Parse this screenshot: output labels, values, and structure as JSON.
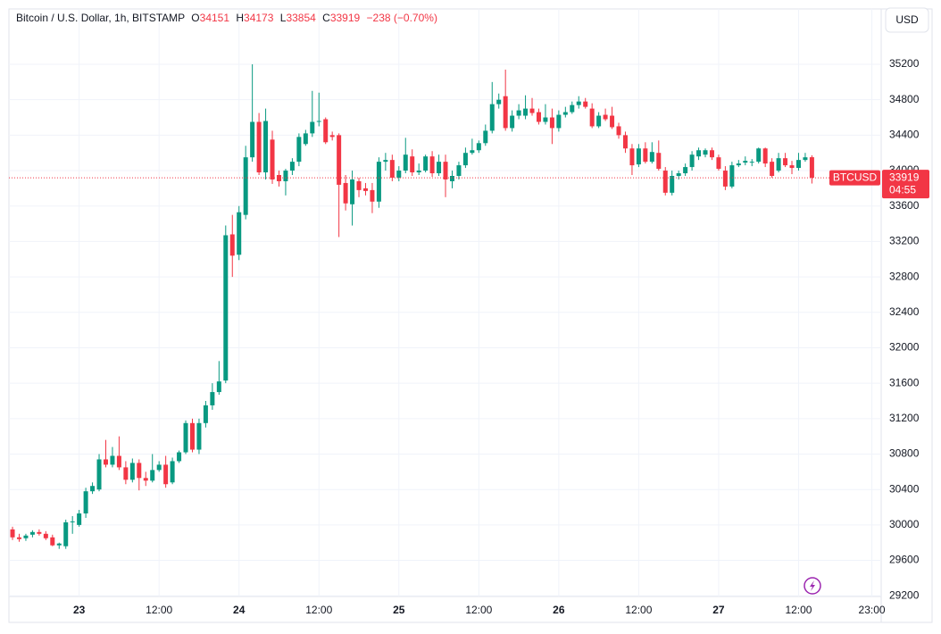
{
  "chart_data": {
    "type": "candlestick",
    "title": "Bitcoin / U.S. Dollar, 1h, BITSTAMP",
    "ohlc_labels": [
      "O",
      "H",
      "L",
      "C"
    ],
    "change": "−238 (−0.70%)",
    "symbol": "BTCUSD",
    "countdown": "04:55",
    "currency": "USD",
    "up_color": "#089981",
    "down_color": "#f23645",
    "grid": true,
    "open": [
      29950,
      29860,
      29850,
      29890,
      29920,
      29900,
      29860,
      29770,
      29760,
      30030,
      30000,
      30130,
      30380,
      30400,
      30740,
      30680,
      30780,
      30650,
      30510,
      30700,
      30530,
      30500,
      30620,
      30680,
      30480,
      30720,
      30820,
      31150,
      30850,
      31150,
      31350,
      31500,
      31630,
      33280,
      33050,
      33500,
      34150,
      34550,
      33980,
      34350,
      33950,
      33880,
      34000,
      34100,
      34300,
      34420,
      34550,
      34580,
      34400,
      34400,
      33860,
      33620,
      33880,
      33800,
      33780,
      33650,
      34100,
      34120,
      33920,
      34000,
      34160,
      33980,
      34000,
      34160,
      33970,
      34100,
      33880,
      33940,
      34060,
      34200,
      34230,
      34310,
      34450,
      34750,
      34840,
      34480,
      34620,
      34620,
      34700,
      34660,
      34550,
      34600,
      34480,
      34630,
      34660,
      34740,
      34780,
      34700,
      34500,
      34630,
      34620,
      34500,
      34400,
      34250,
      34070,
      34250,
      34100,
      34200,
      34000,
      33750,
      33940,
      33970,
      34040,
      34160,
      34180,
      34230,
      34150,
      34000,
      33820,
      34060,
      34090,
      34090,
      34100,
      34250,
      34100,
      34000,
      34140,
      34060,
      34030,
      34120,
      34151
    ],
    "high": [
      29980,
      29900,
      29900,
      29940,
      29950,
      29930,
      29890,
      29800,
      30060,
      30100,
      30170,
      30420,
      30480,
      30800,
      30960,
      30880,
      31000,
      30720,
      30750,
      30740,
      30600,
      30800,
      30720,
      30780,
      30760,
      30840,
      31180,
      31200,
      31200,
      31400,
      31600,
      31850,
      33380,
      33500,
      33600,
      34280,
      35200,
      34650,
      34700,
      34450,
      34000,
      34020,
      34140,
      34420,
      34460,
      34900,
      34880,
      34600,
      34440,
      34420,
      33950,
      34000,
      33920,
      33860,
      33860,
      34150,
      34200,
      34180,
      34050,
      34370,
      34240,
      34080,
      34180,
      34220,
      34180,
      34180,
      34000,
      34100,
      34260,
      34360,
      34340,
      34520,
      35000,
      34870,
      35140,
      34680,
      34750,
      34850,
      34820,
      34700,
      34750,
      34700,
      34680,
      34720,
      34780,
      34840,
      34820,
      34760,
      34660,
      34700,
      34720,
      34540,
      34440,
      34300,
      34300,
      34320,
      34320,
      34340,
      34040,
      34000,
      34000,
      34080,
      34220,
      34260,
      34250,
      34260,
      34180,
      34050,
      34100,
      34120,
      34160,
      34130,
      34260,
      34260,
      34140,
      34200,
      34200,
      34110,
      34200,
      34200,
      34173
    ],
    "low": [
      29830,
      29810,
      29820,
      29860,
      29880,
      29830,
      29760,
      29730,
      29730,
      29900,
      29980,
      30080,
      30350,
      30380,
      30650,
      30650,
      30620,
      30460,
      30480,
      30390,
      30440,
      30480,
      30600,
      30420,
      30460,
      30700,
      30800,
      30820,
      30800,
      31100,
      31300,
      31470,
      31600,
      32800,
      32990,
      33450,
      34100,
      33950,
      33900,
      33850,
      33820,
      33720,
      33950,
      34050,
      34280,
      34380,
      34500,
      34300,
      34340,
      33250,
      33550,
      33380,
      33700,
      33720,
      33520,
      33580,
      34000,
      33880,
      33880,
      33970,
      33940,
      33950,
      33980,
      33930,
      33940,
      33700,
      33800,
      33900,
      34030,
      34180,
      34200,
      34280,
      34420,
      34700,
      34450,
      34440,
      34580,
      34580,
      34620,
      34520,
      34520,
      34300,
      34440,
      34600,
      34640,
      34700,
      34700,
      34480,
      34480,
      34560,
      34470,
      34360,
      34200,
      33950,
      34040,
      34080,
      34080,
      34000,
      33720,
      33720,
      33900,
      33940,
      34000,
      34120,
      34150,
      34120,
      34000,
      33780,
      33800,
      34040,
      34060,
      34050,
      34080,
      34040,
      33920,
      33980,
      34040,
      33960,
      34000,
      34100,
      33854
    ],
    "close": [
      29860,
      29840,
      29880,
      29920,
      29900,
      29850,
      29770,
      29790,
      30030,
      30040,
      30130,
      30380,
      30440,
      30740,
      30680,
      30780,
      30650,
      30510,
      30700,
      30530,
      30500,
      30620,
      30680,
      30460,
      30720,
      30820,
      31150,
      30850,
      31150,
      31350,
      31500,
      31620,
      33270,
      33040,
      33530,
      34150,
      34550,
      33980,
      34560,
      33900,
      33880,
      34000,
      34100,
      34380,
      34420,
      34550,
      34560,
      34320,
      34380,
      33840,
      33630,
      33900,
      33780,
      33770,
      33650,
      34100,
      34120,
      33920,
      34000,
      34180,
      33980,
      34000,
      34160,
      33970,
      34100,
      33900,
      33940,
      34060,
      34200,
      34230,
      34310,
      34450,
      34750,
      34800,
      34480,
      34620,
      34680,
      34700,
      34650,
      34550,
      34600,
      34480,
      34630,
      34660,
      34740,
      34780,
      34720,
      34500,
      34620,
      34580,
      34490,
      34400,
      34250,
      34060,
      34250,
      34100,
      34210,
      34020,
      33750,
      33940,
      33970,
      34040,
      34180,
      34230,
      34230,
      34150,
      34020,
      33820,
      34060,
      34080,
      34110,
      34100,
      34250,
      34080,
      33940,
      34140,
      34060,
      34030,
      34120,
      34150,
      33919
    ],
    "xlim": [
      -0.54,
      130.4
    ],
    "xticks": [
      {
        "value": 10,
        "label": "23"
      },
      {
        "value": 22,
        "label": "12:00"
      },
      {
        "value": 34,
        "label": "24"
      },
      {
        "value": 46,
        "label": "12:00"
      },
      {
        "value": 58,
        "label": "25"
      },
      {
        "value": 70,
        "label": "12:00"
      },
      {
        "value": 82,
        "label": "26"
      },
      {
        "value": 94,
        "label": "12:00"
      },
      {
        "value": 106,
        "label": "27"
      },
      {
        "value": 118,
        "label": "12:00"
      },
      {
        "value": 129,
        "label": "23:00"
      }
    ],
    "ylim": [
      28900,
      35825
    ],
    "yticks": [
      29200,
      29600,
      30000,
      30400,
      30800,
      31200,
      31600,
      32000,
      32400,
      32800,
      33200,
      33600,
      34000,
      34400,
      34800,
      35200
    ]
  }
}
